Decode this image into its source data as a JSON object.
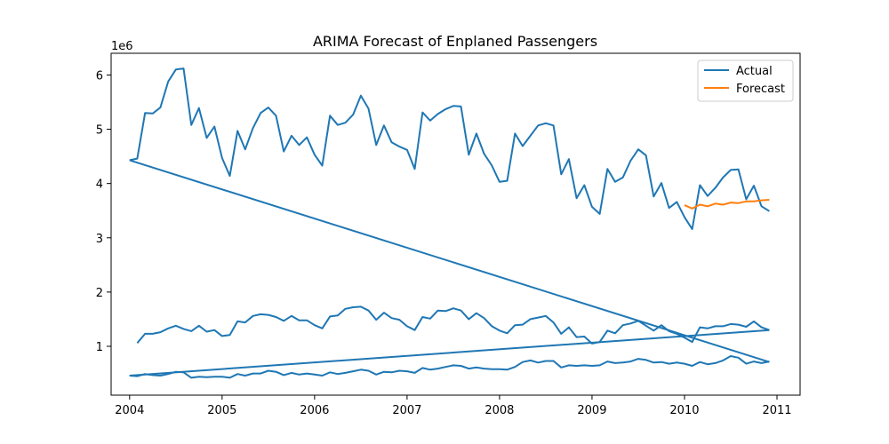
{
  "chart_data": {
    "type": "line",
    "title": "ARIMA Forecast of Enplaned Passengers",
    "xlabel": "",
    "ylabel": "",
    "y_multiplier_label": "1e6",
    "xlim": [
      2003.8,
      2011.25
    ],
    "ylim": [
      0.1,
      6.4
    ],
    "x_ticks": [
      2004,
      2005,
      2006,
      2007,
      2008,
      2009,
      2010,
      2011
    ],
    "x_tick_labels": [
      "2004",
      "2005",
      "2006",
      "2007",
      "2008",
      "2009",
      "2010",
      "2011"
    ],
    "y_ticks": [
      1,
      2,
      3,
      4,
      5,
      6
    ],
    "y_tick_labels": [
      "1",
      "2",
      "3",
      "4",
      "5",
      "6"
    ],
    "grid": false,
    "legend_position": "top-right",
    "colors": {
      "actual": "#1f77b4",
      "forecast": "#ff7f0e"
    },
    "series": [
      {
        "name": "Actual",
        "color": "#1f77b4",
        "segments": [
          {
            "x": [
              2004.0,
              2004.083,
              2004.167,
              2004.25,
              2004.333,
              2004.417,
              2004.5,
              2004.583,
              2004.667,
              2004.75,
              2004.833,
              2004.917,
              2005.0,
              2005.083,
              2005.167,
              2005.25,
              2005.333,
              2005.417,
              2005.5,
              2005.583,
              2005.667,
              2005.75,
              2005.833,
              2005.917,
              2006.0,
              2006.083,
              2006.167,
              2006.25,
              2006.333,
              2006.417,
              2006.5,
              2006.583,
              2006.667,
              2006.75,
              2006.833,
              2006.917,
              2007.0,
              2007.083,
              2007.167,
              2007.25,
              2007.333,
              2007.417,
              2007.5,
              2007.583,
              2007.667,
              2007.75,
              2007.833,
              2007.917,
              2008.0,
              2008.083,
              2008.167,
              2008.25,
              2008.333,
              2008.417,
              2008.5,
              2008.583,
              2008.667,
              2008.75,
              2008.833,
              2008.917,
              2009.0,
              2009.083,
              2009.167,
              2009.25,
              2009.333,
              2009.417,
              2009.5,
              2009.583,
              2009.667,
              2009.75,
              2009.833,
              2009.917,
              2010.0,
              2010.083,
              2010.167,
              2010.25,
              2010.333,
              2010.417,
              2010.5,
              2010.583,
              2010.667,
              2010.75,
              2010.833,
              2010.917
            ],
            "y": [
              4.43,
              4.46,
              5.3,
              5.29,
              5.4,
              5.88,
              6.1,
              6.12,
              5.08,
              5.39,
              4.84,
              5.05,
              4.47,
              4.14,
              4.97,
              4.63,
              5.02,
              5.3,
              5.4,
              5.25,
              4.59,
              4.88,
              4.71,
              4.85,
              4.53,
              4.33,
              5.25,
              5.08,
              5.12,
              5.27,
              5.62,
              5.38,
              4.71,
              5.07,
              4.76,
              4.68,
              4.62,
              4.27,
              5.31,
              5.16,
              5.28,
              5.37,
              5.43,
              5.42,
              4.53,
              4.92,
              4.55,
              4.33,
              4.03,
              4.05,
              4.92,
              4.69,
              4.88,
              5.07,
              5.11,
              5.07,
              4.17,
              4.45,
              3.73,
              3.97,
              3.57,
              3.44,
              4.27,
              4.03,
              4.11,
              4.42,
              4.63,
              4.52,
              3.76,
              4.01,
              3.55,
              3.66,
              3.38,
              3.16,
              3.97,
              3.77,
              3.92,
              4.11,
              4.25,
              4.26,
              3.71,
              3.96,
              3.58,
              3.49
            ]
          },
          {
            "x": [
              2004.0,
              2010.917
            ],
            "y": [
              4.43,
              0.71
            ]
          },
          {
            "x": [
              2004.0,
              2004.083,
              2004.167,
              2004.25,
              2004.333,
              2004.417,
              2004.5,
              2004.583,
              2004.667,
              2004.75,
              2004.833,
              2004.917,
              2005.0,
              2005.083,
              2005.167,
              2005.25,
              2005.333,
              2005.417,
              2005.5,
              2005.583,
              2005.667,
              2005.75,
              2005.833,
              2005.917,
              2006.0,
              2006.083,
              2006.167,
              2006.25,
              2006.333,
              2006.417,
              2006.5,
              2006.583,
              2006.667,
              2006.75,
              2006.833,
              2006.917,
              2007.0,
              2007.083,
              2007.167,
              2007.25,
              2007.333,
              2007.417,
              2007.5,
              2007.583,
              2007.667,
              2007.75,
              2007.833,
              2007.917,
              2008.0,
              2008.083,
              2008.167,
              2008.25,
              2008.333,
              2008.417,
              2008.5,
              2008.583,
              2008.667,
              2008.75,
              2008.833,
              2008.917,
              2009.0,
              2009.083,
              2009.167,
              2009.25,
              2009.333,
              2009.417,
              2009.5,
              2009.583,
              2009.667,
              2009.75,
              2009.833,
              2009.917,
              2010.0,
              2010.083,
              2010.167,
              2010.25,
              2010.333,
              2010.417,
              2010.5,
              2010.583,
              2010.667,
              2010.75,
              2010.833,
              2010.917
            ],
            "y": [
              0.46,
              0.45,
              0.49,
              0.47,
              0.46,
              0.49,
              0.53,
              0.52,
              0.42,
              0.44,
              0.43,
              0.44,
              0.44,
              0.42,
              0.49,
              0.46,
              0.5,
              0.5,
              0.55,
              0.53,
              0.47,
              0.51,
              0.48,
              0.5,
              0.48,
              0.46,
              0.52,
              0.49,
              0.51,
              0.54,
              0.57,
              0.55,
              0.48,
              0.53,
              0.52,
              0.55,
              0.54,
              0.51,
              0.6,
              0.57,
              0.59,
              0.62,
              0.65,
              0.64,
              0.59,
              0.61,
              0.59,
              0.58,
              0.58,
              0.57,
              0.62,
              0.71,
              0.74,
              0.7,
              0.73,
              0.73,
              0.61,
              0.65,
              0.64,
              0.65,
              0.64,
              0.65,
              0.72,
              0.69,
              0.7,
              0.72,
              0.77,
              0.75,
              0.7,
              0.71,
              0.68,
              0.7,
              0.68,
              0.64,
              0.71,
              0.67,
              0.69,
              0.74,
              0.82,
              0.79,
              0.68,
              0.72,
              0.69,
              0.72
            ]
          },
          {
            "x": [
              2004.0,
              2010.917
            ],
            "y": [
              0.46,
              1.3
            ]
          },
          {
            "x": [
              2004.083,
              2004.167,
              2004.25,
              2004.333,
              2004.417,
              2004.5,
              2004.583,
              2004.667,
              2004.75,
              2004.833,
              2004.917,
              2005.0,
              2005.083,
              2005.167,
              2005.25,
              2005.333,
              2005.417,
              2005.5,
              2005.583,
              2005.667,
              2005.75,
              2005.833,
              2005.917,
              2006.0,
              2006.083,
              2006.167,
              2006.25,
              2006.333,
              2006.417,
              2006.5,
              2006.583,
              2006.667,
              2006.75,
              2006.833,
              2006.917,
              2007.0,
              2007.083,
              2007.167,
              2007.25,
              2007.333,
              2007.417,
              2007.5,
              2007.583,
              2007.667,
              2007.75,
              2007.833,
              2007.917,
              2008.0,
              2008.083,
              2008.167,
              2008.25,
              2008.333,
              2008.417,
              2008.5,
              2008.583,
              2008.667,
              2008.75,
              2008.833,
              2008.917,
              2009.0,
              2009.083,
              2009.167,
              2009.25,
              2009.333,
              2009.417,
              2009.5,
              2009.583,
              2009.667,
              2009.75,
              2009.833,
              2009.917,
              2010.0,
              2010.083,
              2010.167,
              2010.25,
              2010.333,
              2010.417,
              2010.5,
              2010.583,
              2010.667,
              2010.75,
              2010.833,
              2010.917
            ],
            "y": [
              1.06,
              1.23,
              1.23,
              1.26,
              1.33,
              1.38,
              1.32,
              1.28,
              1.38,
              1.27,
              1.3,
              1.19,
              1.21,
              1.46,
              1.44,
              1.56,
              1.59,
              1.58,
              1.54,
              1.47,
              1.56,
              1.48,
              1.48,
              1.39,
              1.33,
              1.55,
              1.57,
              1.69,
              1.72,
              1.73,
              1.66,
              1.49,
              1.62,
              1.52,
              1.49,
              1.37,
              1.3,
              1.54,
              1.51,
              1.66,
              1.65,
              1.7,
              1.66,
              1.5,
              1.61,
              1.52,
              1.37,
              1.29,
              1.24,
              1.39,
              1.4,
              1.5,
              1.53,
              1.56,
              1.44,
              1.23,
              1.35,
              1.17,
              1.18,
              1.05,
              1.08,
              1.29,
              1.24,
              1.39,
              1.42,
              1.47,
              1.38,
              1.29,
              1.39,
              1.28,
              1.23,
              1.16,
              1.08,
              1.35,
              1.33,
              1.37,
              1.37,
              1.41,
              1.4,
              1.36,
              1.46,
              1.35,
              1.3
            ]
          }
        ]
      },
      {
        "name": "Forecast",
        "color": "#ff7f0e",
        "segments": [
          {
            "x": [
              2010.0,
              2010.083,
              2010.167,
              2010.25,
              2010.333,
              2010.417,
              2010.5,
              2010.583,
              2010.667,
              2010.75,
              2010.833,
              2010.917
            ],
            "y": [
              3.6,
              3.54,
              3.61,
              3.58,
              3.63,
              3.61,
              3.65,
              3.64,
              3.67,
              3.67,
              3.69,
              3.7
            ]
          }
        ]
      }
    ]
  }
}
